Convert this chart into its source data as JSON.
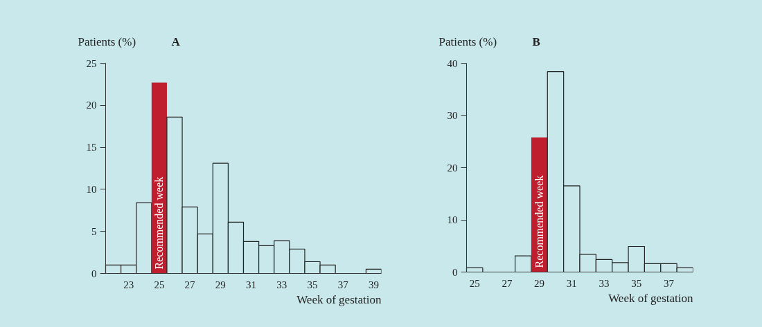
{
  "chart_data": [
    {
      "type": "histogram",
      "title": "A",
      "ylabel": "Patients (%)",
      "xlabel": "Week of gestation",
      "bins": [
        21.5,
        22.5,
        23.5,
        24.5,
        25.5,
        26.5,
        27.5,
        28.5,
        29.5,
        30.5,
        31.5,
        32.5,
        33.5,
        34.5,
        35.5,
        36.5,
        37.5,
        38.5,
        39.5
      ],
      "values": [
        1.0,
        1.0,
        8.4,
        22.7,
        18.6,
        7.9,
        4.7,
        13.1,
        6.1,
        3.8,
        3.3,
        3.9,
        2.9,
        1.4,
        1.0,
        0,
        0,
        0.5
      ],
      "colors": [
        "#c8e8eb",
        "#c8e8eb",
        "#c8e8eb",
        "#be1e2d",
        "#c8e8eb",
        "#c8e8eb",
        "#c8e8eb",
        "#c8e8eb",
        "#c8e8eb",
        "#c8e8eb",
        "#c8e8eb",
        "#c8e8eb",
        "#c8e8eb",
        "#c8e8eb",
        "#c8e8eb",
        "#c8e8eb",
        "#c8e8eb",
        "#c8e8eb"
      ],
      "xlim": [
        21.5,
        39.5
      ],
      "ylim": [
        0,
        25
      ],
      "xticks": [
        23,
        25,
        27,
        29,
        31,
        33,
        35,
        37,
        39
      ],
      "yticks": [
        0,
        5,
        10,
        15,
        20,
        25
      ],
      "annotations": [
        {
          "text": "Recommended week",
          "x": 25,
          "y": 0
        }
      ]
    },
    {
      "type": "histogram",
      "title": "B",
      "ylabel": "Patients (%)",
      "xlabel": "Week of gestation",
      "bins": [
        24.5,
        25.5,
        26.5,
        27.5,
        28.5,
        29.5,
        30.5,
        31.5,
        32.5,
        33.5,
        34.5,
        35.5,
        36.5,
        37.5,
        38.5
      ],
      "values": [
        0.8,
        0,
        0,
        3.1,
        25.8,
        38.4,
        16.5,
        3.4,
        2.4,
        1.8,
        4.9,
        1.6,
        1.6,
        0.8
      ],
      "colors": [
        "#c8e8eb",
        "#c8e8eb",
        "#c8e8eb",
        "#c8e8eb",
        "#be1e2d",
        "#c8e8eb",
        "#c8e8eb",
        "#c8e8eb",
        "#c8e8eb",
        "#c8e8eb",
        "#c8e8eb",
        "#c8e8eb",
        "#c8e8eb",
        "#c8e8eb"
      ],
      "xlim": [
        24.5,
        38.5
      ],
      "ylim": [
        0,
        40
      ],
      "xticks": [
        25,
        27,
        29,
        31,
        33,
        35,
        37
      ],
      "yticks": [
        0,
        10,
        20,
        30,
        40
      ],
      "annotations": [
        {
          "text": "Recommended week",
          "x": 29,
          "y": 0
        }
      ]
    }
  ]
}
